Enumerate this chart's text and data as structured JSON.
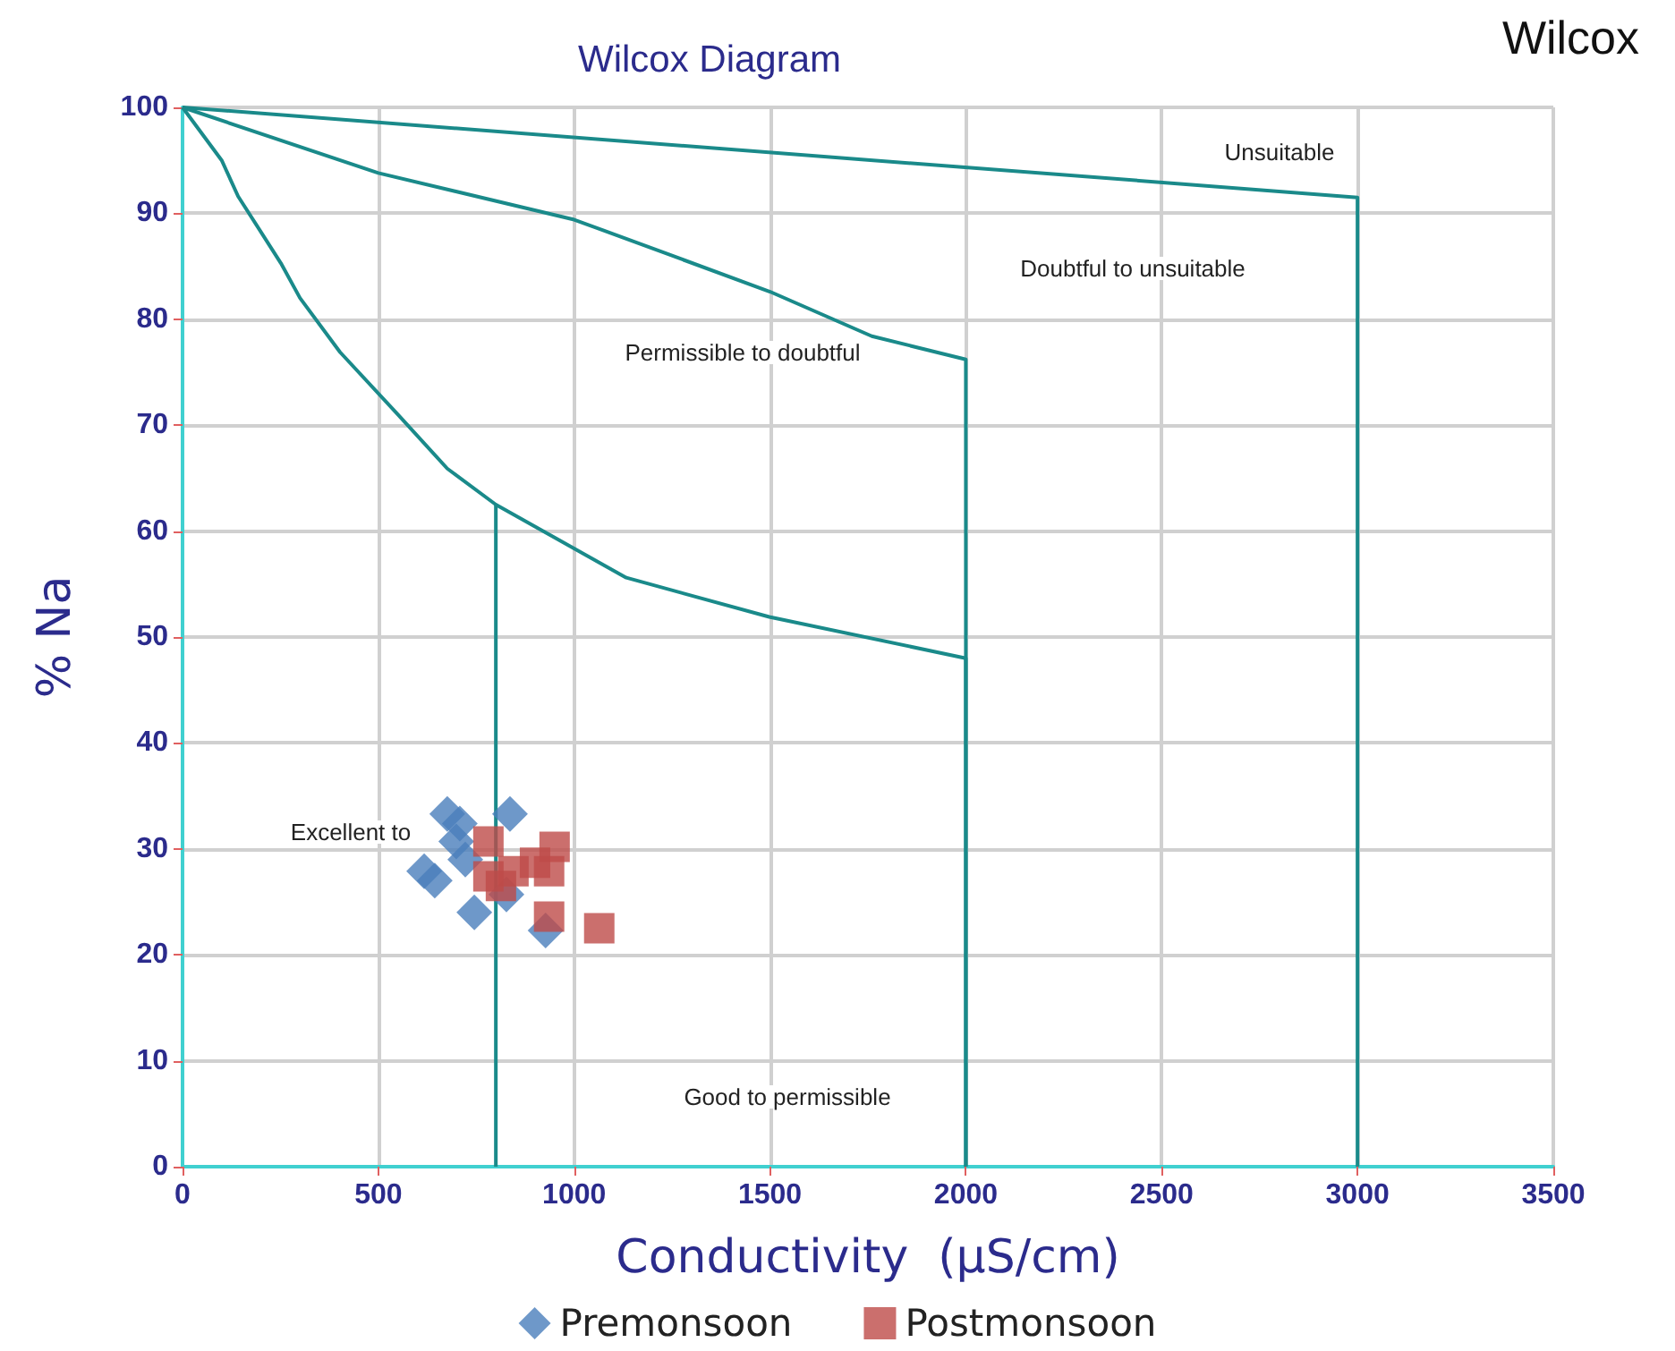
{
  "chart_data": {
    "type": "scatter",
    "title": "Wilcox Diagram",
    "xlabel": "Conductivity  (µS/cm)",
    "ylabel": "% Na",
    "xlim": [
      0,
      3500
    ],
    "xticks": [
      0,
      500,
      1000,
      1500,
      2000,
      2500,
      3000,
      3500
    ],
    "ylim": [
      0,
      100
    ],
    "yticks": [
      0,
      10,
      20,
      30,
      40,
      50,
      60,
      70,
      80,
      90,
      100
    ],
    "grid": true,
    "legend": "bottom",
    "series": [
      {
        "type": "line",
        "color": "#1a8a8a",
        "marker": "none",
        "x": [
          0,
          3000,
          3000
        ],
        "values": [
          100,
          91.5,
          0
        ]
      },
      {
        "type": "line",
        "color": "#1a8a8a",
        "marker": "none",
        "x": [
          0,
          500,
          1000,
          1500,
          1760,
          2000,
          2000
        ],
        "values": [
          100,
          93.8,
          89.4,
          82.6,
          78.4,
          76.2,
          0
        ]
      },
      {
        "type": "line",
        "color": "#1a8a8a",
        "marker": "none",
        "x": [
          0,
          100,
          142,
          251,
          300,
          402,
          550,
          676,
          800,
          1133,
          1498,
          2000,
          2000
        ],
        "values": [
          100,
          95,
          91.6,
          85.3,
          82,
          76.9,
          71,
          65.9,
          62.5,
          55.6,
          51.9,
          48,
          0
        ]
      },
      {
        "type": "line",
        "color": "#1a8a8a",
        "marker": "none",
        "x": [
          800,
          800
        ],
        "values": [
          62.5,
          0
        ]
      },
      {
        "name": "Premonsoon",
        "color": "#4a7ebb",
        "marker": "diamond",
        "x": [
          676,
          836,
          617,
          644,
          745,
          927,
          699,
          722,
          827,
          708
        ],
        "values": [
          33.3,
          33.3,
          27.9,
          27,
          24,
          22.3,
          30.7,
          29,
          25.7,
          32.4
        ]
      },
      {
        "name": "Postmonsoon",
        "color": "#be4b48",
        "marker": "square",
        "x": [
          781,
          781,
          845,
          950,
          936,
          936,
          1064,
          813,
          900
        ],
        "values": [
          30.7,
          27.4,
          27.9,
          30.2,
          27.9,
          23.6,
          22.5,
          26.5,
          28.7
        ]
      }
    ],
    "annotations": [
      "Wilcox",
      "Unsuitable",
      "Doubtful to unsuitable",
      "Permissible to doubtful",
      "Excellent to",
      "Good to permissible"
    ]
  }
}
